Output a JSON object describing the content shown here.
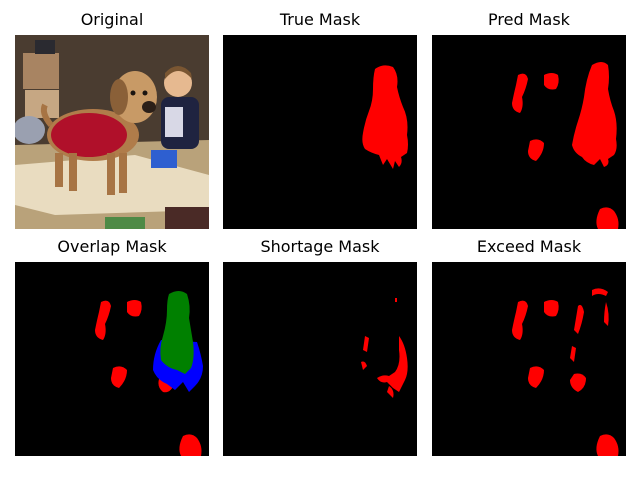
{
  "figure": {
    "panels": [
      {
        "title": "Original"
      },
      {
        "title": "True Mask"
      },
      {
        "title": "Pred Mask"
      },
      {
        "title": "Overlap Mask"
      },
      {
        "title": "Shortage Mask"
      },
      {
        "title": "Exceed Mask"
      }
    ],
    "colors": {
      "background": "#000000",
      "mask": "#ff0000",
      "overlap": "#008000",
      "shortage_under": "#0000ff"
    }
  }
}
